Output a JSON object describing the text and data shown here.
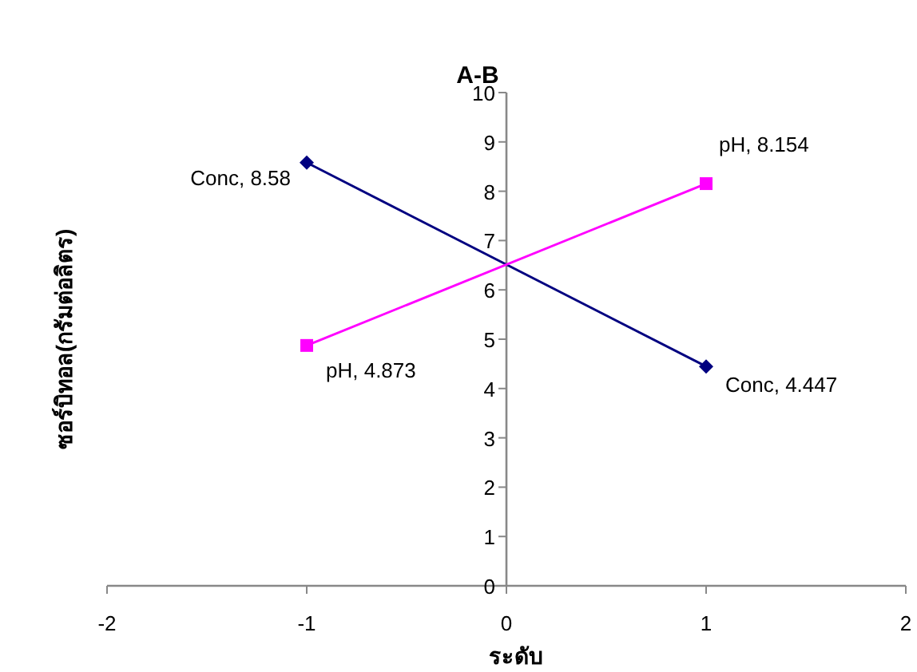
{
  "chart_data": {
    "type": "line",
    "title": "A-B",
    "xlabel": "ระดับ",
    "ylabel": "ซอร์บิทอล(กรัมต่อลิตร)",
    "x": [
      -1,
      1
    ],
    "series": [
      {
        "color": "#000080",
        "marker": "diamond",
        "values": [
          8.58,
          4.447
        ],
        "value_labels": [
          "Conc, 8.58",
          "Conc, 4.447"
        ]
      },
      {
        "color": "#ff00ff",
        "marker": "square",
        "values": [
          4.873,
          8.154
        ],
        "value_labels": [
          "pH, 4.873",
          "pH, 8.154"
        ]
      }
    ],
    "xlim": [
      -2,
      2
    ],
    "xticks": [
      -2,
      -1,
      0,
      1,
      2
    ],
    "ylim": [
      0,
      10
    ],
    "yticks": [
      0,
      1,
      2,
      3,
      4,
      5,
      6,
      7,
      8,
      9,
      10
    ],
    "grid": false,
    "line_style": "solid"
  }
}
